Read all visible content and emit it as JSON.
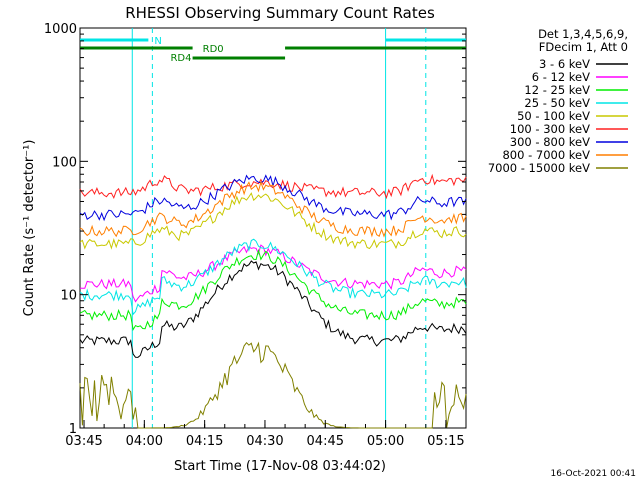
{
  "chart_data": {
    "type": "line",
    "title": "RHESSI Observing Summary Count Rates",
    "xlabel": "Start Time (17-Nov-08 03:44:02)",
    "ylabel": "Count Rate (s⁻¹ detector⁻¹)",
    "y_scale": "log",
    "ylim": [
      1,
      1000
    ],
    "xlim_minutes": [
      0,
      96
    ],
    "x_ticks": [
      "03:45",
      "04:00",
      "04:15",
      "04:30",
      "04:45",
      "05:00",
      "05:15"
    ],
    "y_ticks": [
      "1",
      "10",
      "100",
      "1000"
    ],
    "legend_header": [
      "Det 1,3,4,5,6,9,",
      "FDecim 1, Att 0"
    ],
    "legend_position": "right",
    "timestamp": "16-Oct-2021 00:41",
    "flags": [
      {
        "label": "N",
        "color": "#00e5e5"
      },
      {
        "label": "RD0",
        "color": "#007f00"
      },
      {
        "label": "RD4",
        "color": "#007f00"
      }
    ],
    "series": [
      {
        "name": "3 - 6 keV",
        "color": "#000000",
        "baseline": 4.5,
        "peak": 17
      },
      {
        "name": "6 - 12 keV",
        "color": "#ff00ff",
        "baseline": 12,
        "peak": 22
      },
      {
        "name": "12 - 25 keV",
        "color": "#00ee00",
        "baseline": 7,
        "peak": 20
      },
      {
        "name": "25 - 50 keV",
        "color": "#00e5e5",
        "baseline": 10,
        "peak": 24
      },
      {
        "name": "50 - 100 keV",
        "color": "#c8c800",
        "baseline": 24,
        "peak": 56
      },
      {
        "name": "100 - 300 keV",
        "color": "#ff2020",
        "baseline": 58,
        "peak": 70
      },
      {
        "name": "300 - 800 keV",
        "color": "#0000dd",
        "baseline": 40,
        "peak": 75
      },
      {
        "name": "800 - 7000 keV",
        "color": "#ff7f00",
        "baseline": 30,
        "peak": 65
      },
      {
        "name": "7000 - 15000 keV",
        "color": "#808000",
        "baseline": 1.5,
        "peak": 4.5
      }
    ]
  }
}
